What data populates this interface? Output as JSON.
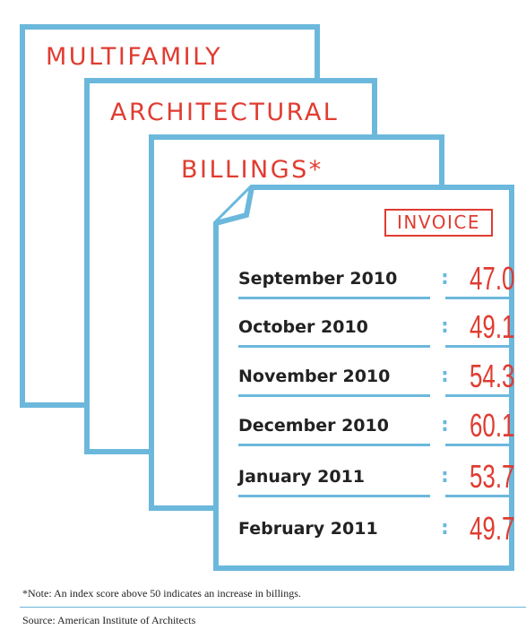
{
  "titles": [
    "MULTIFAMILY",
    "ARCHITECTURAL",
    "BILLINGS*"
  ],
  "invoice_label": "INVOICE",
  "rows": [
    {
      "month": "September 2010",
      "value": "47.0"
    },
    {
      "month": "October 2010",
      "value": "49.1"
    },
    {
      "month": "November 2010",
      "value": "54.3"
    },
    {
      "month": "December 2010",
      "value": "60.1"
    },
    {
      "month": "January 2011",
      "value": "53.7"
    },
    {
      "month": "February 2011",
      "value": "49.7"
    }
  ],
  "footnote": "*Note: An index score above 50 indicates an increase in billings.",
  "source": "Source: American Institute of Architects",
  "colors": {
    "accent_red": "#e03c31",
    "frame_blue": "#6cb8dc",
    "text": "#222222"
  }
}
